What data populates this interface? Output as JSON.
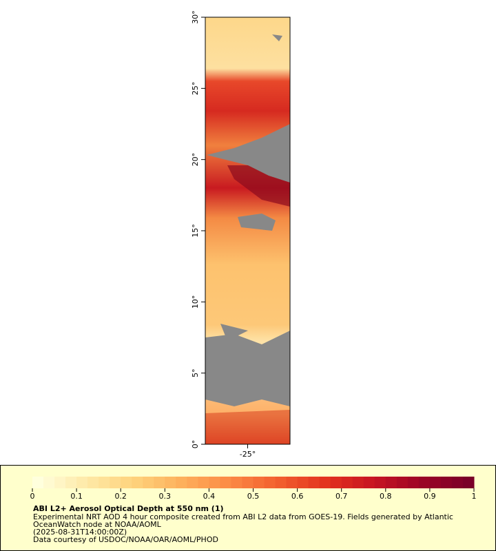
{
  "map": {
    "latlim": [
      0,
      30
    ],
    "lonlim": [
      -28,
      -22
    ],
    "lat_ticks": [
      {
        "value": 0,
        "label": "0°"
      },
      {
        "value": 5,
        "label": "5°"
      },
      {
        "value": 10,
        "label": "10°"
      },
      {
        "value": 15,
        "label": "15°"
      },
      {
        "value": 20,
        "label": "20°"
      },
      {
        "value": 25,
        "label": "25°"
      },
      {
        "value": 30,
        "label": "30°"
      }
    ],
    "lon_ticks": [
      {
        "value": -25,
        "label": "-25°"
      }
    ]
  },
  "colorbar": {
    "range": [
      0,
      1
    ],
    "ticks": [
      0,
      0.1,
      0.2,
      0.3,
      0.4,
      0.5,
      0.6,
      0.7,
      0.8,
      0.9,
      1
    ],
    "colors": [
      "#ffffdd",
      "#fee9a8",
      "#fed37c",
      "#fdb05c",
      "#fc8a45",
      "#f2602f",
      "#e3331f",
      "#c81522",
      "#9c0526",
      "#7a0028"
    ]
  },
  "caption": {
    "title": "ABI L2+ Aerosol Optical Depth at 550 nm (1)",
    "lines": [
      "Experimental NRT AOD 4 hour composite created from ABI L2 data from GOES-19. Fields generated by Atlantic",
      "OceanWatch node at NOAA/AOML",
      "(2025-08-31T14:00:00Z)",
      "Data courtesy of USDOC/NOAA/OAR/AOML/PHOD"
    ]
  }
}
